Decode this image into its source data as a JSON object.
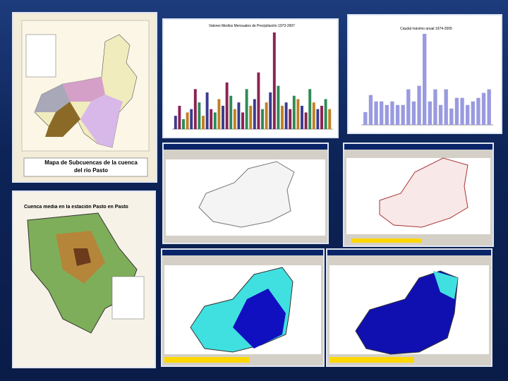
{
  "panels": {
    "map_title": "Mapa de Subcuencas de la cuenca del río Pasto",
    "relief_title": "Cuenca media en la estación Pasto en Pasto",
    "chart1": {
      "title": "Valores Medios Mensuales de Precipitación 1973-2007",
      "colors": [
        "#3b3b8f",
        "#8b2252",
        "#2e8b57",
        "#c08020"
      ],
      "values": [
        20,
        35,
        15,
        25,
        30,
        60,
        40,
        20,
        55,
        30,
        25,
        45,
        35,
        70,
        50,
        30,
        40,
        25,
        60,
        35,
        45,
        85,
        30,
        40,
        55,
        145,
        65,
        35,
        40,
        30,
        50,
        45,
        35,
        25,
        60,
        40,
        30,
        35,
        45,
        30
      ]
    },
    "chart2": {
      "title": "Caudal máximo anual 1974-2005",
      "color": "#9a9ae0",
      "values": [
        18,
        42,
        33,
        33,
        28,
        33,
        28,
        28,
        50,
        33,
        55,
        128,
        33,
        50,
        28,
        50,
        23,
        38,
        38,
        28,
        33,
        38,
        45,
        50
      ]
    }
  }
}
